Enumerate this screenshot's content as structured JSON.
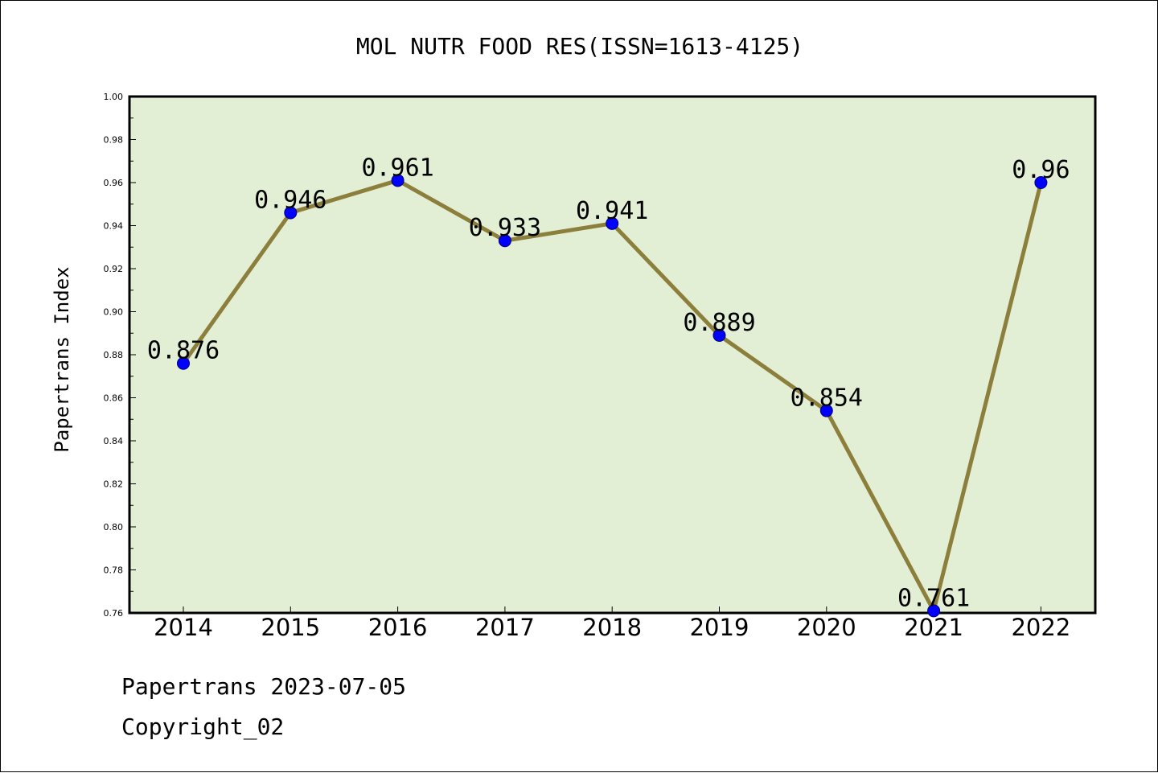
{
  "footer": {
    "date_line": "Papertrans 2023-07-05",
    "copyright": "Copyright_02"
  },
  "chart_data": {
    "type": "line",
    "title": "MOL NUTR FOOD RES(ISSN=1613-4125)",
    "xlabel": "",
    "ylabel": "Papertrans Index",
    "categories": [
      "2014",
      "2015",
      "2016",
      "2017",
      "2018",
      "2019",
      "2020",
      "2021",
      "2022"
    ],
    "series": [
      {
        "values": [
          0.876,
          0.946,
          0.961,
          0.933,
          0.941,
          0.889,
          0.854,
          0.761,
          0.96
        ]
      }
    ],
    "data_labels": [
      "0.876",
      "0.946",
      "0.961",
      "0.933",
      "0.941",
      "0.889",
      "0.854",
      "0.761",
      "0.96"
    ],
    "ylim": [
      0.76,
      1.0
    ],
    "y_ticks": [
      "0.76",
      "0.78",
      "0.80",
      "0.82",
      "0.84",
      "0.86",
      "0.88",
      "0.90",
      "0.92",
      "0.94",
      "0.96",
      "0.98",
      "1.00"
    ],
    "grid": false,
    "legend": "none",
    "colors": {
      "plot_background": "#e2efd5",
      "line": "#8c7f3c",
      "marker": "#0000ff"
    }
  }
}
